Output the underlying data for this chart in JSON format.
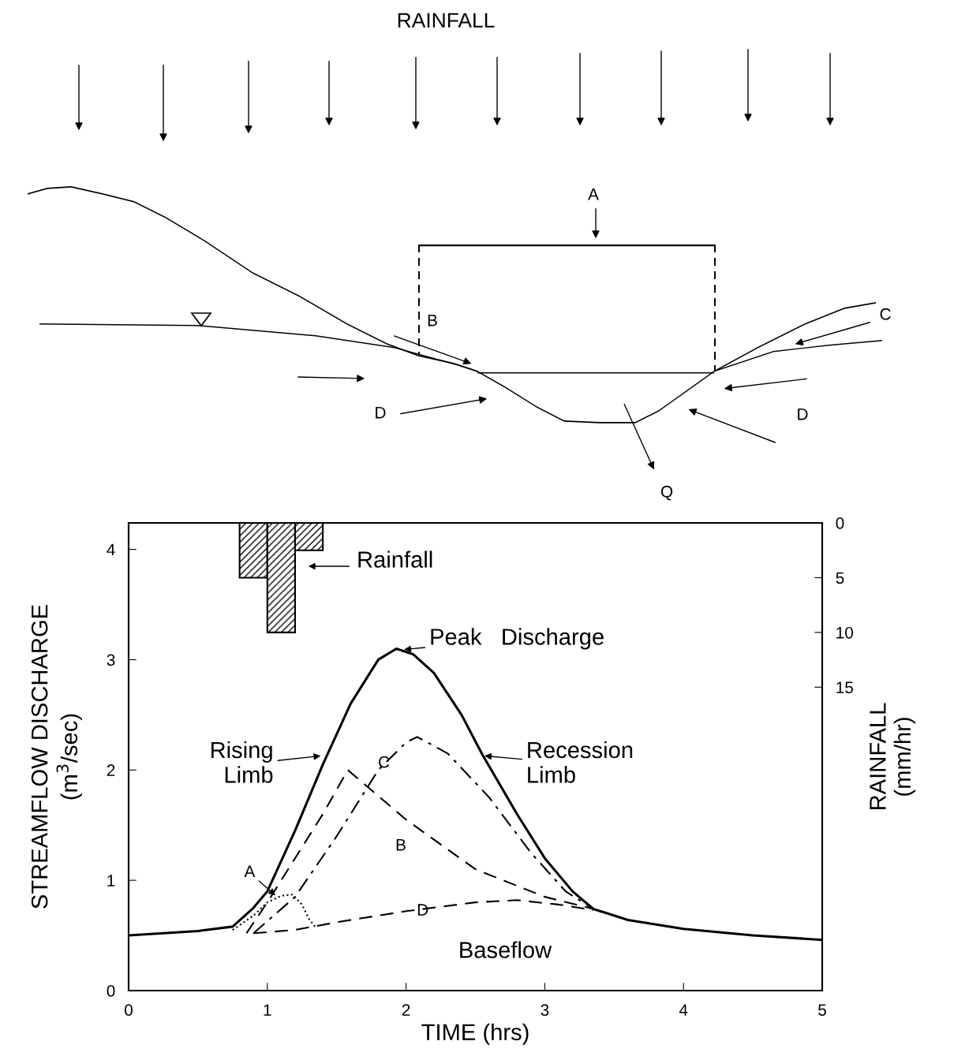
{
  "chart_data": {
    "type": "line",
    "title": "RAINFALL",
    "xlabel": "TIME (hrs)",
    "ylabel": "STREAMFLOW DISCHARGE\n(m$^{3}$/sec)",
    "y2label": "RAINFALL\n(mm/hr)",
    "xlim": [
      0,
      5
    ],
    "xticks": [
      0,
      1,
      2,
      3,
      4,
      5
    ],
    "ylim": [
      0,
      4.24
    ],
    "yticks": [
      0,
      1,
      2,
      3,
      4
    ],
    "y2lim": [
      42.7,
      0
    ],
    "y2ticks": [
      0,
      5,
      10,
      15
    ],
    "grid": false,
    "legend": false,
    "series": [
      {
        "type": "bar",
        "axis": "y2",
        "color": "#000000",
        "x": [
          0.9,
          1.1,
          1.3
        ],
        "values": [
          5,
          10,
          2.5
        ]
      },
      {
        "color": "#000000",
        "line_style": "solid",
        "x": [
          0,
          0.5,
          0.75,
          0.9,
          1.0,
          1.2,
          1.4,
          1.6,
          1.8,
          1.93,
          2.05,
          2.2,
          2.4,
          2.55,
          2.8,
          3.0,
          3.2,
          3.35,
          3.6,
          4.0,
          4.5,
          5.0
        ],
        "values": [
          0.5,
          0.54,
          0.58,
          0.75,
          0.9,
          1.45,
          2.05,
          2.6,
          3.0,
          3.1,
          3.05,
          2.88,
          2.5,
          2.14,
          1.6,
          1.2,
          0.9,
          0.74,
          0.64,
          0.56,
          0.5,
          0.46
        ]
      },
      {
        "color": "#000000",
        "line_style": "dotted",
        "x": [
          0.75,
          0.9,
          1.0,
          1.1,
          1.18,
          1.25,
          1.3,
          1.35
        ],
        "values": [
          0.55,
          0.68,
          0.8,
          0.86,
          0.87,
          0.78,
          0.65,
          0.57
        ]
      },
      {
        "color": "#000000",
        "line_style": "dashed",
        "x": [
          0.85,
          1.0,
          1.2,
          1.4,
          1.58,
          2.0,
          2.5,
          3.0,
          3.35
        ],
        "values": [
          0.52,
          0.8,
          1.2,
          1.6,
          2.0,
          1.55,
          1.1,
          0.85,
          0.74
        ]
      },
      {
        "color": "#000000",
        "line_style": "dashdot",
        "x": [
          0.9,
          1.2,
          1.5,
          1.8,
          2.0,
          2.08,
          2.3,
          2.6,
          2.9,
          3.15,
          3.35
        ],
        "values": [
          0.52,
          0.85,
          1.4,
          2.0,
          2.25,
          2.3,
          2.15,
          1.75,
          1.25,
          0.9,
          0.74
        ]
      },
      {
        "color": "#000000",
        "line_style": "dashed",
        "x": [
          0.9,
          1.2,
          1.5,
          2.0,
          2.5,
          2.8,
          3.1,
          3.35
        ],
        "values": [
          0.52,
          0.55,
          0.62,
          0.72,
          0.8,
          0.82,
          0.78,
          0.73
        ]
      }
    ],
    "annotations": [
      "Rainfall",
      {
        "text": "Peak   Discharge",
        "x": 1.97,
        "y": 3.09
      },
      {
        "text": "Rising\nLimb",
        "x": 1.4,
        "y": 2.13
      },
      {
        "text": "Recession\nLimb",
        "x": 2.55,
        "y": 2.13
      },
      {
        "text": "A",
        "x": 1.07,
        "y": 0.85
      },
      "B",
      {
        "text": "C",
        "x": 1.84,
        "y": 2.06
      },
      {
        "text": "D",
        "x": 2.12,
        "y": 0.72
      },
      "Baseflow",
      "A",
      "B",
      "C",
      "D",
      "D",
      "Q"
    ]
  }
}
